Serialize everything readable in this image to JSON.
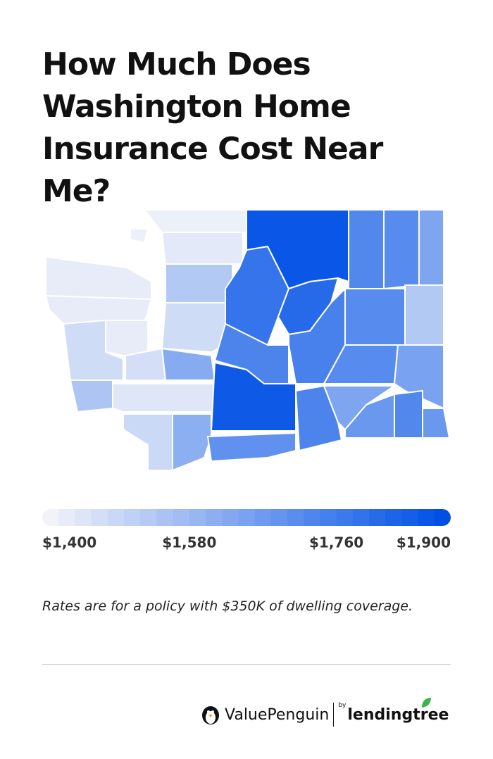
{
  "header": {
    "title": "How Much Does Washington Home Insurance Cost Near Me?"
  },
  "map": {
    "regions": [
      1420,
      1420,
      1470,
      1420,
      1540,
      1440,
      1480,
      1610,
      1460,
      1620,
      1470,
      1530,
      1430,
      1410,
      1790,
      1880,
      1820,
      1740,
      1870,
      1700,
      1750,
      1740,
      1730,
      1720,
      1640,
      1720,
      1530,
      1720,
      1650,
      1640,
      1680,
      1730,
      1680,
      1410
    ],
    "scale": {
      "lim": [
        1400,
        1900
      ],
      "ticks": [
        {
          "value": 1400,
          "label": "$1,400"
        },
        {
          "value": 1580,
          "label": "$1,580"
        },
        {
          "value": 1760,
          "label": "$1,760"
        },
        {
          "value": 1900,
          "label": "$1,900"
        }
      ],
      "colors": [
        "#f1f3f9",
        "#0050e6"
      ]
    }
  },
  "note": "Rates are for a policy with $350K of dwelling coverage.",
  "footer": {
    "brand": "ValuePenguin",
    "by": "by",
    "partner": "lendingtree"
  }
}
